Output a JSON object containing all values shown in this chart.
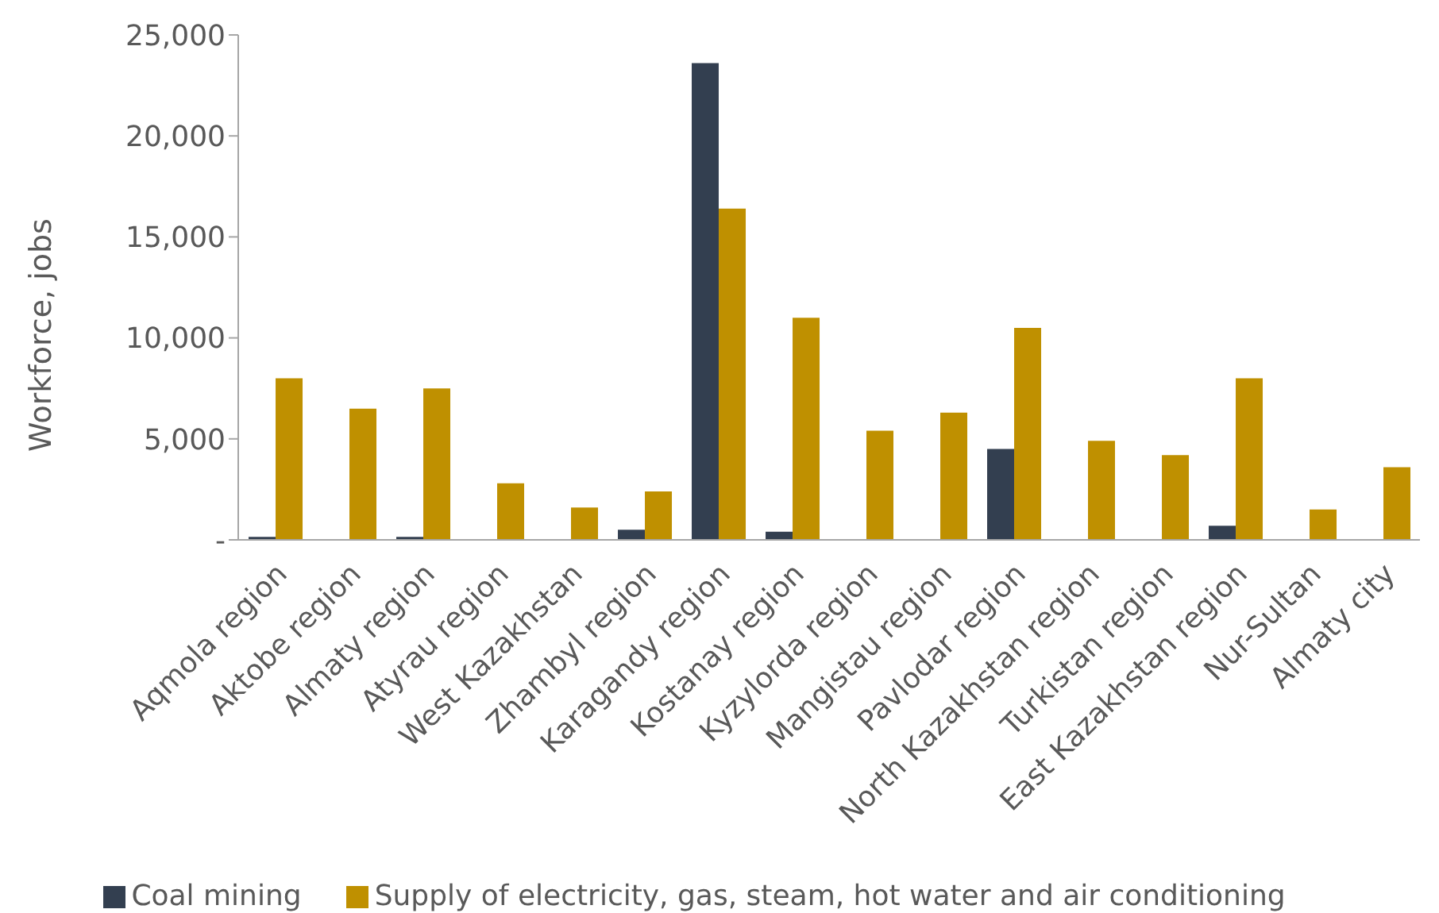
{
  "chart_data": {
    "type": "bar",
    "categories": [
      "Aqmola region",
      "Aktobe region",
      "Almaty region",
      "Atyrau region",
      "West Kazakhstan",
      "Zhambyl region",
      "Karagandy region",
      "Kostanay region",
      "Kyzylorda region",
      "Mangistau region",
      "Pavlodar region",
      "North Kazakhstan region",
      "Turkistan region",
      "East Kazakhstan region",
      "Nur-Sultan",
      "Almaty city"
    ],
    "series": [
      {
        "name": "Coal mining",
        "color": "#333f50",
        "values": [
          150,
          0,
          150,
          0,
          0,
          500,
          23600,
          400,
          0,
          0,
          4500,
          0,
          0,
          700,
          0,
          0
        ]
      },
      {
        "name": "Supply of electricity, gas, steam, hot water and air conditioning",
        "color": "#bf9000",
        "values": [
          8000,
          6500,
          7500,
          2800,
          1600,
          2400,
          16400,
          11000,
          5400,
          6300,
          10500,
          4900,
          4200,
          8000,
          1500,
          3600
        ]
      }
    ],
    "ylabel": "Workforce, jobs",
    "ylim": [
      0,
      25000
    ],
    "yticks": [
      {
        "value": 0,
        "label": "-"
      },
      {
        "value": 5000,
        "label": "5,000"
      },
      {
        "value": 10000,
        "label": "10,000"
      },
      {
        "value": 15000,
        "label": "15,000"
      },
      {
        "value": 20000,
        "label": "20,000"
      },
      {
        "value": 25000,
        "label": "25,000"
      }
    ],
    "legend": "bottom"
  }
}
